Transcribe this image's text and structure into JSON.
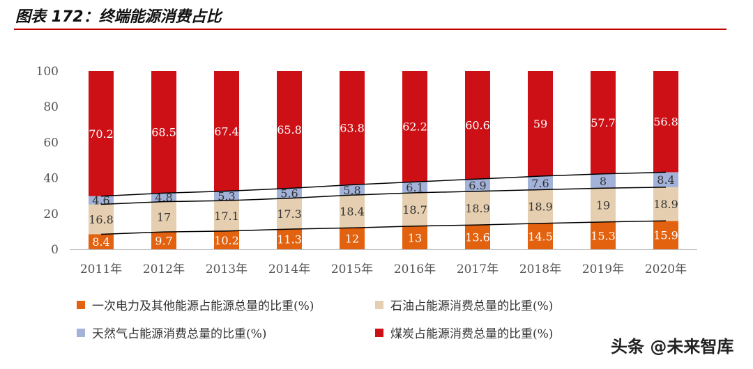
{
  "title": "图表 172：终端能源消费占比",
  "watermark": "头条 @未来智库",
  "colors": {
    "electricity": "#e2620f",
    "oil": "#e6cfb0",
    "gas": "#a3b2d9",
    "coal": "#cc1016",
    "rule": "#c00000",
    "connector": "#000000"
  },
  "chart_data": {
    "type": "bar",
    "stacked": true,
    "title": "",
    "xlabel": "",
    "ylabel": "",
    "ylim": [
      0,
      100
    ],
    "yticks": [
      "0",
      "20",
      "40",
      "60",
      "80",
      "100"
    ],
    "categories": [
      "2011年",
      "2012年",
      "2013年",
      "2014年",
      "2015年",
      "2016年",
      "2017年",
      "2018年",
      "2019年",
      "2020年"
    ],
    "series": [
      {
        "name": "一次电力及其他能源占能源总量的比重(%)",
        "color_key": "electricity",
        "values": [
          8.4,
          9.7,
          10.2,
          11.3,
          12,
          13,
          13.6,
          14.5,
          15.3,
          15.9
        ]
      },
      {
        "name": "石油占能源消费总量的比重(%)",
        "color_key": "oil",
        "values": [
          16.8,
          17,
          17.1,
          17.3,
          18.4,
          18.7,
          18.9,
          18.9,
          19,
          18.9
        ]
      },
      {
        "name": "天然气占能源消费总量的比重(%)",
        "color_key": "gas",
        "values": [
          4.6,
          4.8,
          5.3,
          5.6,
          5.8,
          6.1,
          6.9,
          7.6,
          8,
          8.4
        ]
      },
      {
        "name": "煤炭占能源消费总量的比重(%)",
        "color_key": "coal",
        "values": [
          70.2,
          68.5,
          67.4,
          65.8,
          63.8,
          62.2,
          60.6,
          59,
          57.7,
          56.8
        ]
      }
    ],
    "display_labels": [
      [
        "8.4",
        "9.7",
        "10.2",
        "11.3",
        "12",
        "13",
        "13.6",
        "14.5",
        "15.3",
        "15.9"
      ],
      [
        "16.8",
        "17",
        "17.1",
        "17.3",
        "18.4",
        "18.7",
        "18.9",
        "18.9",
        "19",
        "18.9"
      ],
      [
        "4.6",
        "4.8",
        "5.3",
        "5.6",
        "5.8",
        "6.1",
        "6.9",
        "7.6",
        "8",
        "8.4"
      ],
      [
        "70.2",
        "68.5",
        "67.4",
        "65.8",
        "63.8",
        "62.2",
        "60.6",
        "59",
        "57.7",
        "56.8"
      ]
    ],
    "series_lines": true,
    "grid": false,
    "legend": "bottom"
  }
}
